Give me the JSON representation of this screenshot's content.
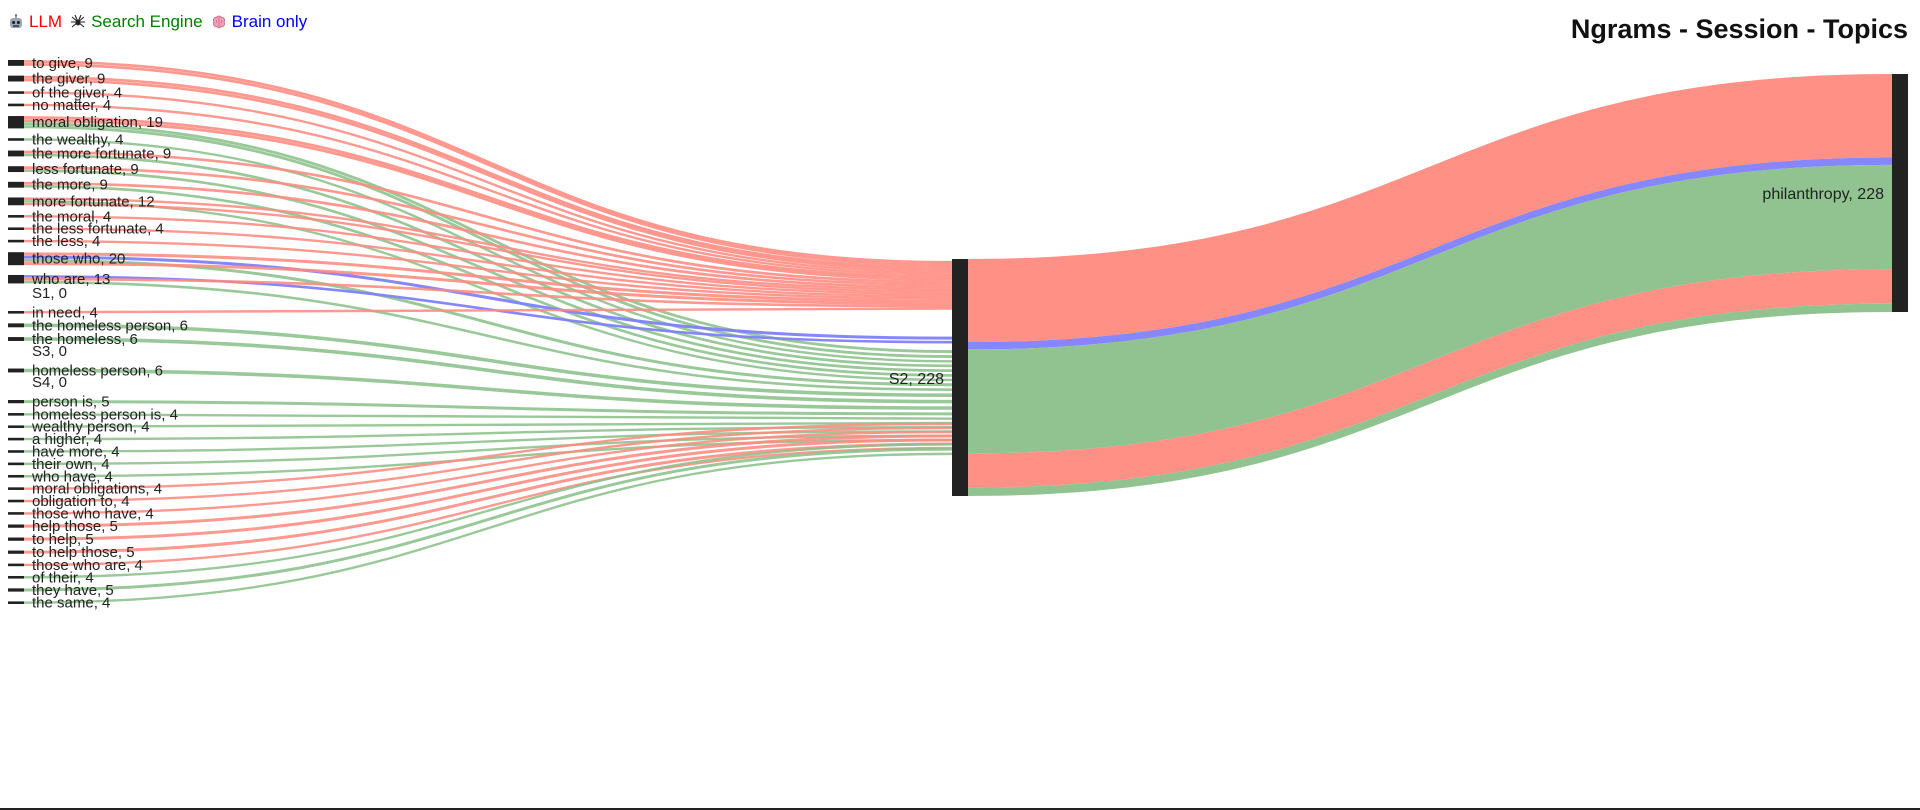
{
  "title": "Ngrams - Session - Topics",
  "legend": [
    {
      "label": "LLM",
      "icon": "robot-icon",
      "color": "#ff0000"
    },
    {
      "label": "Search Engine",
      "icon": "spider-icon",
      "color": "#008000"
    },
    {
      "label": "Brain only",
      "icon": "brain-icon",
      "color": "#0000ff"
    }
  ],
  "colors": {
    "LLM": "#ff8a80",
    "Search Engine": "#8bc08b",
    "Brain only": "#7f7fff",
    "node": "#222222"
  },
  "chart_data": {
    "type": "sankey",
    "title": "Ngrams - Session - Topics",
    "groups": [
      "LLM",
      "Search Engine",
      "Brain only"
    ],
    "nodes": {
      "ngrams": [
        {
          "label": "to give, 9",
          "name": "to give",
          "value": 9,
          "groups": [
            "LLM",
            "LLM"
          ]
        },
        {
          "label": "the giver, 9",
          "name": "the giver",
          "value": 9,
          "groups": [
            "LLM",
            "LLM"
          ]
        },
        {
          "label": "of the giver, 4",
          "name": "of the giver",
          "value": 4,
          "groups": [
            "LLM"
          ]
        },
        {
          "label": "no matter, 4",
          "name": "no matter",
          "value": 4,
          "groups": [
            "LLM"
          ]
        },
        {
          "label": "moral obligation, 19",
          "name": "moral obligation",
          "value": 19,
          "groups": [
            "LLM",
            "LLM",
            "Search Engine",
            "Search Engine"
          ]
        },
        {
          "label": "the wealthy, 4",
          "name": "the wealthy",
          "value": 4,
          "groups": [
            "Search Engine"
          ]
        },
        {
          "label": "the more fortunate, 9",
          "name": "the more fortunate",
          "value": 9,
          "groups": [
            "LLM",
            "Search Engine"
          ]
        },
        {
          "label": "less fortunate, 9",
          "name": "less fortunate",
          "value": 9,
          "groups": [
            "LLM",
            "Search Engine"
          ]
        },
        {
          "label": "the more, 9",
          "name": "the more",
          "value": 9,
          "groups": [
            "LLM",
            "Search Engine"
          ]
        },
        {
          "label": "more fortunate, 12",
          "name": "more fortunate",
          "value": 12,
          "groups": [
            "LLM",
            "Search Engine",
            "LLM"
          ]
        },
        {
          "label": "the moral, 4",
          "name": "the moral",
          "value": 4,
          "groups": [
            "LLM"
          ]
        },
        {
          "label": "the less fortunate, 4",
          "name": "the less fortunate",
          "value": 4,
          "groups": [
            "LLM"
          ]
        },
        {
          "label": "the less, 4",
          "name": "the less",
          "value": 4,
          "groups": [
            "LLM"
          ]
        },
        {
          "label": "those who, 20",
          "name": "those who",
          "value": 20,
          "groups": [
            "LLM",
            "Brain only",
            "Search Engine",
            "LLM"
          ]
        },
        {
          "label": "who are, 13",
          "name": "who are",
          "value": 13,
          "groups": [
            "Brain only",
            "LLM",
            "Search Engine"
          ]
        },
        {
          "label": "S1, 0",
          "name": "S1",
          "value": 0,
          "groups": []
        },
        {
          "label": "in need, 4",
          "name": "in need",
          "value": 4,
          "groups": [
            "LLM"
          ]
        },
        {
          "label": "the homeless person, 6",
          "name": "the homeless person",
          "value": 6,
          "groups": [
            "Search Engine"
          ]
        },
        {
          "label": "the homeless, 6",
          "name": "the homeless",
          "value": 6,
          "groups": [
            "Search Engine"
          ]
        },
        {
          "label": "S3, 0",
          "name": "S3",
          "value": 0,
          "groups": []
        },
        {
          "label": "homeless person, 6",
          "name": "homeless person",
          "value": 6,
          "groups": [
            "Search Engine"
          ]
        },
        {
          "label": "S4, 0",
          "name": "S4",
          "value": 0,
          "groups": []
        },
        {
          "label": "person is, 5",
          "name": "person is",
          "value": 5,
          "groups": [
            "Search Engine"
          ]
        },
        {
          "label": "homeless person is, 4",
          "name": "homeless person is",
          "value": 4,
          "groups": [
            "Search Engine"
          ]
        },
        {
          "label": "wealthy person, 4",
          "name": "wealthy person",
          "value": 4,
          "groups": [
            "Search Engine"
          ]
        },
        {
          "label": "a higher, 4",
          "name": "a higher",
          "value": 4,
          "groups": [
            "Search Engine"
          ]
        },
        {
          "label": "have more, 4",
          "name": "have more",
          "value": 4,
          "groups": [
            "Search Engine"
          ]
        },
        {
          "label": "their own, 4",
          "name": "their own",
          "value": 4,
          "groups": [
            "Search Engine"
          ]
        },
        {
          "label": "who have, 4",
          "name": "who have",
          "value": 4,
          "groups": [
            "Search Engine"
          ]
        },
        {
          "label": "moral obligations, 4",
          "name": "moral obligations",
          "value": 4,
          "groups": [
            "LLM"
          ]
        },
        {
          "label": "obligation to, 4",
          "name": "obligation to",
          "value": 4,
          "groups": [
            "LLM"
          ]
        },
        {
          "label": "those who have, 4",
          "name": "those who have",
          "value": 4,
          "groups": [
            "LLM"
          ]
        },
        {
          "label": "help those, 5",
          "name": "help those",
          "value": 5,
          "groups": [
            "LLM"
          ]
        },
        {
          "label": "to help, 5",
          "name": "to help",
          "value": 5,
          "groups": [
            "LLM"
          ]
        },
        {
          "label": "to help those, 5",
          "name": "to help those",
          "value": 5,
          "groups": [
            "LLM"
          ]
        },
        {
          "label": "those who are, 4",
          "name": "those who are",
          "value": 4,
          "groups": [
            "LLM"
          ]
        },
        {
          "label": "of their, 4",
          "name": "of their",
          "value": 4,
          "groups": [
            "Search Engine"
          ]
        },
        {
          "label": "they have, 5",
          "name": "they have",
          "value": 5,
          "groups": [
            "Search Engine"
          ]
        },
        {
          "label": "the same, 4",
          "name": "the same",
          "value": 4,
          "groups": [
            "Search Engine"
          ]
        }
      ],
      "session": {
        "label": "S2, 228",
        "name": "S2",
        "value": 228
      },
      "topic": {
        "label": "philanthropy, 228",
        "name": "philanthropy",
        "value": 228
      }
    },
    "session_to_topic": [
      {
        "group": "LLM",
        "value": 80
      },
      {
        "group": "Brain only",
        "value": 7
      },
      {
        "group": "Search Engine",
        "value": 100
      },
      {
        "group": "LLM",
        "value": 33
      },
      {
        "group": "Search Engine",
        "value": 8
      }
    ]
  }
}
